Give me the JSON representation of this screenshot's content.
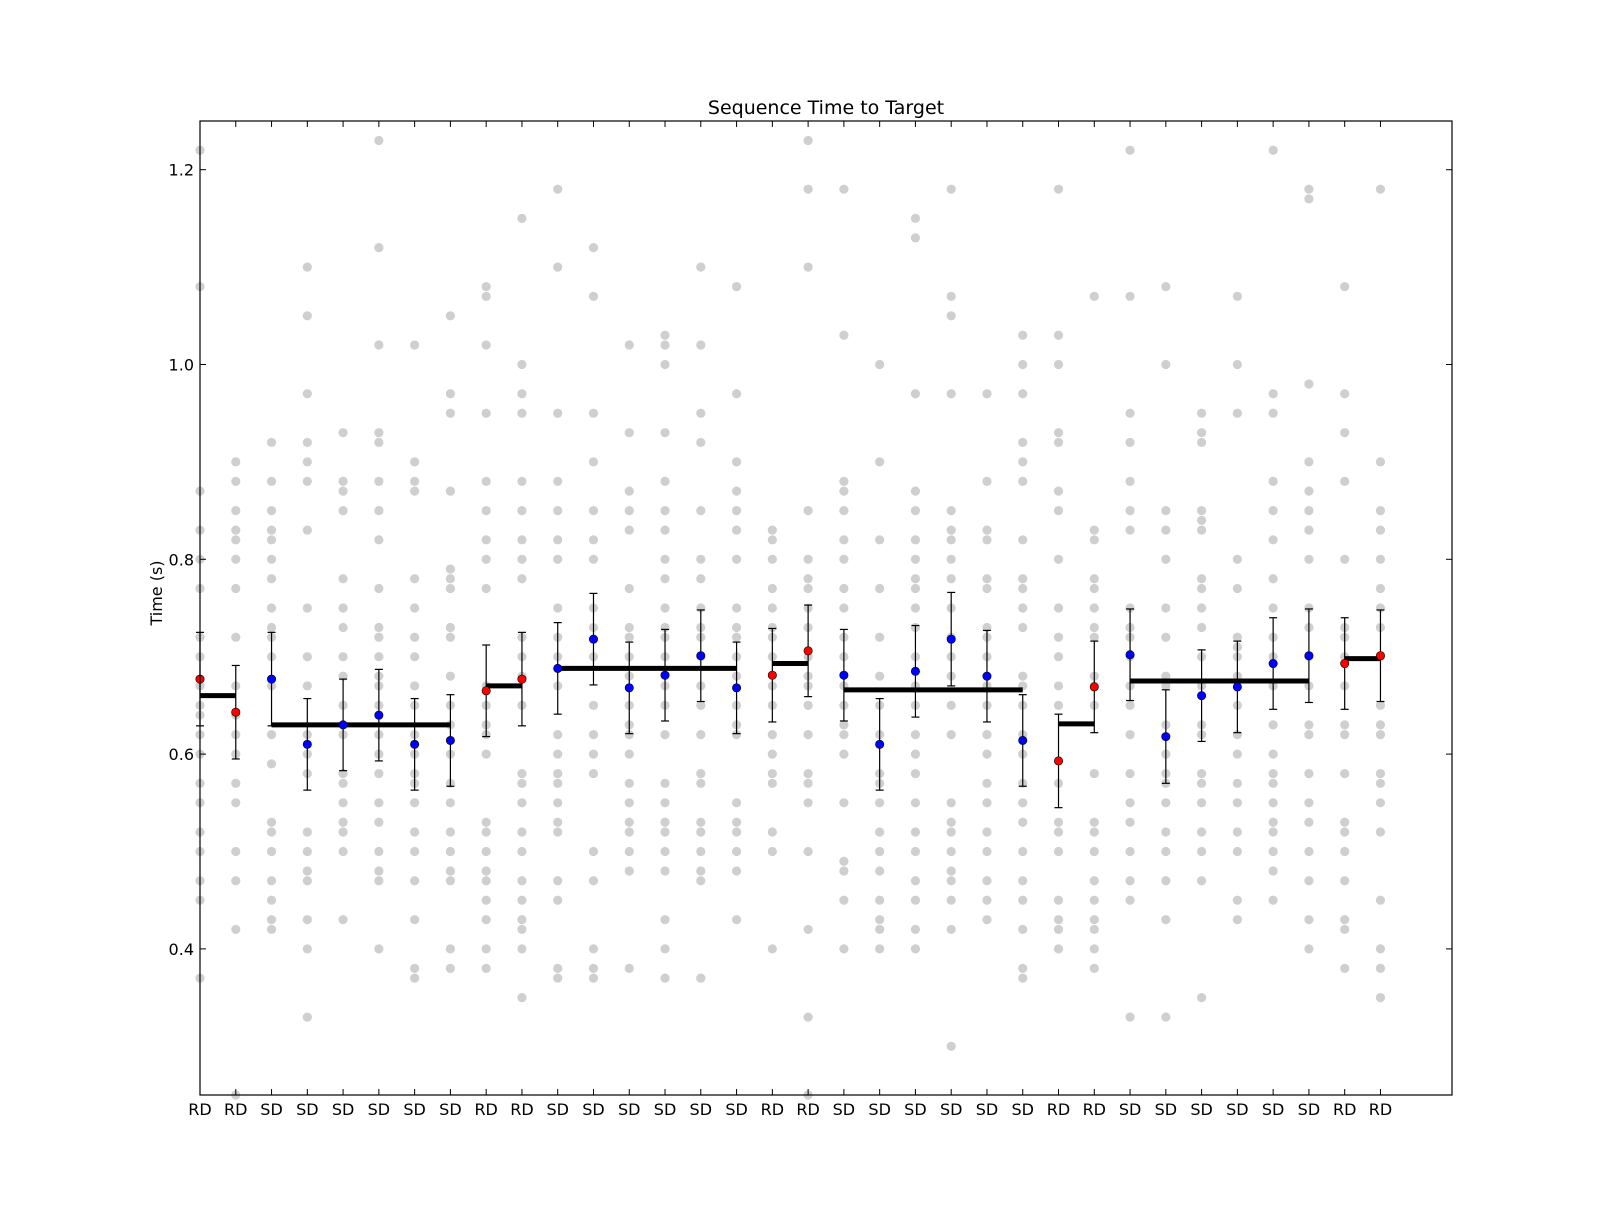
{
  "chart_data": {
    "type": "scatter",
    "title": "Sequence Time to Target",
    "xlabel": "",
    "ylabel": "Time (s)",
    "ylim": [
      0.25,
      1.25
    ],
    "xlim": [
      0,
      35
    ],
    "grid": false,
    "yticks": [
      0.4,
      0.6,
      0.8,
      1.0,
      1.2
    ],
    "ytick_labels": [
      "0.4",
      "0.6",
      "0.8",
      "1.0",
      "1.2"
    ],
    "categories": [
      "RD",
      "RD",
      "SD",
      "SD",
      "SD",
      "SD",
      "SD",
      "SD",
      "RD",
      "RD",
      "SD",
      "SD",
      "SD",
      "SD",
      "SD",
      "SD",
      "RD",
      "RD",
      "SD",
      "SD",
      "SD",
      "SD",
      "SD",
      "SD",
      "RD",
      "RD",
      "SD",
      "SD",
      "SD",
      "SD",
      "SD",
      "SD",
      "RD",
      "RD"
    ],
    "colors": {
      "rd_mean": "#ff0000",
      "sd_mean": "#0000ff",
      "raw_points": "#808080",
      "block_mean": "#000000"
    },
    "means": [
      0.677,
      0.643,
      0.677,
      0.61,
      0.63,
      0.64,
      0.61,
      0.614,
      0.665,
      0.677,
      0.688,
      0.718,
      0.668,
      0.681,
      0.701,
      0.668,
      0.681,
      0.706,
      0.681,
      0.61,
      0.685,
      0.718,
      0.68,
      0.614,
      0.593,
      0.669,
      0.702,
      0.618,
      0.66,
      0.669,
      0.693,
      0.701,
      0.693,
      0.701
    ],
    "errors": [
      0.048,
      0.048,
      0.048,
      0.047,
      0.047,
      0.047,
      0.047,
      0.047,
      0.047,
      0.048,
      0.047,
      0.047,
      0.047,
      0.047,
      0.047,
      0.047,
      0.048,
      0.047,
      0.047,
      0.047,
      0.047,
      0.048,
      0.047,
      0.047,
      0.048,
      0.047,
      0.047,
      0.048,
      0.047,
      0.047,
      0.047,
      0.048,
      0.047,
      0.047
    ],
    "block_means": [
      {
        "start": 0,
        "end": 1,
        "value": 0.66
      },
      {
        "start": 2,
        "end": 7,
        "value": 0.63
      },
      {
        "start": 8,
        "end": 9,
        "value": 0.67
      },
      {
        "start": 10,
        "end": 15,
        "value": 0.688
      },
      {
        "start": 16,
        "end": 17,
        "value": 0.693
      },
      {
        "start": 18,
        "end": 23,
        "value": 0.666
      },
      {
        "start": 24,
        "end": 25,
        "value": 0.631
      },
      {
        "start": 26,
        "end": 31,
        "value": 0.675
      },
      {
        "start": 32,
        "end": 33,
        "value": 0.698
      }
    ],
    "raw_points": [
      [
        0.37,
        0.45,
        0.47,
        0.5,
        0.52,
        0.55,
        0.57,
        0.6,
        0.62,
        0.64,
        0.65,
        0.67,
        0.7,
        0.72,
        0.77,
        0.8,
        0.83,
        0.87,
        1.08,
        1.22
      ],
      [
        0.25,
        0.42,
        0.47,
        0.5,
        0.55,
        0.57,
        0.6,
        0.62,
        0.64,
        0.67,
        0.72,
        0.77,
        0.8,
        0.82,
        0.83,
        0.85,
        0.88,
        0.9
      ],
      [
        0.42,
        0.43,
        0.45,
        0.47,
        0.5,
        0.52,
        0.53,
        0.59,
        0.62,
        0.67,
        0.7,
        0.72,
        0.73,
        0.75,
        0.78,
        0.8,
        0.82,
        0.83,
        0.85,
        0.88,
        0.92
      ],
      [
        0.33,
        0.4,
        0.43,
        0.47,
        0.48,
        0.5,
        0.52,
        0.58,
        0.6,
        0.62,
        0.67,
        0.7,
        0.75,
        0.83,
        0.88,
        0.9,
        0.92,
        0.97,
        1.05,
        1.1
      ],
      [
        0.43,
        0.5,
        0.52,
        0.53,
        0.55,
        0.57,
        0.58,
        0.62,
        0.63,
        0.65,
        0.68,
        0.7,
        0.73,
        0.75,
        0.78,
        0.85,
        0.87,
        0.88,
        0.93
      ],
      [
        0.4,
        0.47,
        0.48,
        0.5,
        0.53,
        0.55,
        0.58,
        0.6,
        0.62,
        0.65,
        0.67,
        0.68,
        0.7,
        0.72,
        0.73,
        0.77,
        0.82,
        0.85,
        0.88,
        0.92,
        0.93,
        1.02,
        1.12,
        1.23
      ],
      [
        0.37,
        0.38,
        0.43,
        0.47,
        0.5,
        0.52,
        0.55,
        0.57,
        0.58,
        0.6,
        0.62,
        0.65,
        0.67,
        0.7,
        0.72,
        0.75,
        0.78,
        0.87,
        0.88,
        0.9,
        1.02
      ],
      [
        0.38,
        0.4,
        0.47,
        0.48,
        0.5,
        0.52,
        0.55,
        0.57,
        0.6,
        0.63,
        0.65,
        0.68,
        0.72,
        0.73,
        0.77,
        0.78,
        0.79,
        0.87,
        0.95,
        0.97,
        1.05
      ],
      [
        0.38,
        0.4,
        0.43,
        0.45,
        0.47,
        0.48,
        0.5,
        0.52,
        0.53,
        0.6,
        0.62,
        0.63,
        0.65,
        0.67,
        0.77,
        0.8,
        0.82,
        0.85,
        0.88,
        0.95,
        1.02,
        1.07,
        1.08
      ],
      [
        0.35,
        0.4,
        0.42,
        0.43,
        0.45,
        0.47,
        0.5,
        0.52,
        0.55,
        0.57,
        0.58,
        0.65,
        0.68,
        0.7,
        0.72,
        0.78,
        0.8,
        0.82,
        0.85,
        0.88,
        0.95,
        0.97,
        1.0,
        1.15
      ],
      [
        0.37,
        0.38,
        0.45,
        0.47,
        0.52,
        0.53,
        0.55,
        0.57,
        0.58,
        0.6,
        0.62,
        0.67,
        0.7,
        0.72,
        0.75,
        0.8,
        0.82,
        0.85,
        0.88,
        0.95,
        1.1,
        1.18
      ],
      [
        0.37,
        0.38,
        0.4,
        0.47,
        0.5,
        0.58,
        0.6,
        0.62,
        0.65,
        0.7,
        0.73,
        0.75,
        0.8,
        0.82,
        0.85,
        0.9,
        0.95,
        1.07,
        1.12
      ],
      [
        0.38,
        0.48,
        0.5,
        0.52,
        0.53,
        0.55,
        0.57,
        0.6,
        0.62,
        0.63,
        0.65,
        0.68,
        0.7,
        0.72,
        0.73,
        0.77,
        0.83,
        0.85,
        0.87,
        0.93,
        1.02
      ],
      [
        0.37,
        0.4,
        0.43,
        0.48,
        0.5,
        0.52,
        0.53,
        0.55,
        0.57,
        0.62,
        0.65,
        0.67,
        0.7,
        0.72,
        0.73,
        0.75,
        0.78,
        0.8,
        0.83,
        0.85,
        0.88,
        0.93,
        1.0,
        1.02,
        1.03
      ],
      [
        0.37,
        0.47,
        0.48,
        0.5,
        0.52,
        0.53,
        0.57,
        0.58,
        0.62,
        0.65,
        0.67,
        0.7,
        0.72,
        0.73,
        0.75,
        0.78,
        0.8,
        0.85,
        0.92,
        0.95,
        1.02,
        1.1
      ],
      [
        0.43,
        0.48,
        0.5,
        0.52,
        0.53,
        0.55,
        0.62,
        0.63,
        0.65,
        0.68,
        0.7,
        0.72,
        0.73,
        0.75,
        0.8,
        0.83,
        0.85,
        0.87,
        0.9,
        0.97,
        1.08
      ],
      [
        0.4,
        0.5,
        0.52,
        0.57,
        0.58,
        0.6,
        0.62,
        0.65,
        0.67,
        0.7,
        0.72,
        0.73,
        0.75,
        0.77,
        0.8,
        0.82,
        0.83
      ],
      [
        0.25,
        0.33,
        0.42,
        0.5,
        0.55,
        0.57,
        0.58,
        0.62,
        0.65,
        0.67,
        0.68,
        0.7,
        0.73,
        0.75,
        0.77,
        0.78,
        0.8,
        0.85,
        1.1,
        1.18,
        1.23
      ],
      [
        0.4,
        0.45,
        0.48,
        0.49,
        0.55,
        0.6,
        0.62,
        0.63,
        0.65,
        0.67,
        0.7,
        0.72,
        0.75,
        0.77,
        0.8,
        0.82,
        0.85,
        0.87,
        0.88,
        1.03,
        1.18
      ],
      [
        0.4,
        0.42,
        0.43,
        0.45,
        0.48,
        0.5,
        0.52,
        0.55,
        0.57,
        0.58,
        0.62,
        0.65,
        0.68,
        0.72,
        0.77,
        0.82,
        0.9,
        1.0
      ],
      [
        0.4,
        0.42,
        0.45,
        0.47,
        0.5,
        0.52,
        0.55,
        0.58,
        0.6,
        0.62,
        0.65,
        0.67,
        0.7,
        0.73,
        0.75,
        0.77,
        0.78,
        0.8,
        0.82,
        0.85,
        0.87,
        0.97,
        1.13,
        1.15
      ],
      [
        0.3,
        0.42,
        0.45,
        0.47,
        0.48,
        0.5,
        0.52,
        0.53,
        0.55,
        0.62,
        0.65,
        0.68,
        0.7,
        0.72,
        0.75,
        0.78,
        0.8,
        0.82,
        0.83,
        0.85,
        0.97,
        1.05,
        1.07,
        1.18
      ],
      [
        0.43,
        0.45,
        0.47,
        0.5,
        0.52,
        0.55,
        0.57,
        0.6,
        0.62,
        0.65,
        0.67,
        0.7,
        0.72,
        0.73,
        0.77,
        0.78,
        0.82,
        0.83,
        0.88,
        0.97
      ],
      [
        0.37,
        0.38,
        0.42,
        0.45,
        0.47,
        0.5,
        0.53,
        0.55,
        0.57,
        0.6,
        0.62,
        0.65,
        0.67,
        0.68,
        0.73,
        0.75,
        0.77,
        0.78,
        0.82,
        0.88,
        0.9,
        0.92,
        0.97,
        1.0,
        1.03
      ],
      [
        0.4,
        0.42,
        0.43,
        0.45,
        0.5,
        0.52,
        0.53,
        0.57,
        0.65,
        0.67,
        0.7,
        0.72,
        0.75,
        0.8,
        0.85,
        0.87,
        0.92,
        0.93,
        1.0,
        1.03,
        1.18
      ],
      [
        0.38,
        0.4,
        0.42,
        0.43,
        0.45,
        0.47,
        0.5,
        0.52,
        0.53,
        0.58,
        0.65,
        0.67,
        0.68,
        0.72,
        0.73,
        0.75,
        0.77,
        0.78,
        0.82,
        0.83,
        1.07
      ],
      [
        0.33,
        0.45,
        0.47,
        0.5,
        0.53,
        0.55,
        0.58,
        0.62,
        0.65,
        0.67,
        0.7,
        0.72,
        0.73,
        0.75,
        0.83,
        0.85,
        0.88,
        0.92,
        0.95,
        1.07,
        1.22
      ],
      [
        0.33,
        0.43,
        0.47,
        0.5,
        0.52,
        0.55,
        0.57,
        0.58,
        0.6,
        0.63,
        0.67,
        0.68,
        0.72,
        0.75,
        0.8,
        0.83,
        0.85,
        1.0,
        1.08
      ],
      [
        0.35,
        0.47,
        0.5,
        0.52,
        0.55,
        0.57,
        0.58,
        0.62,
        0.63,
        0.67,
        0.7,
        0.73,
        0.75,
        0.77,
        0.78,
        0.83,
        0.84,
        0.85,
        0.92,
        0.93,
        0.95
      ],
      [
        0.43,
        0.45,
        0.5,
        0.52,
        0.55,
        0.57,
        0.6,
        0.62,
        0.65,
        0.68,
        0.7,
        0.71,
        0.72,
        0.77,
        0.8,
        0.95,
        1.0,
        1.07
      ],
      [
        0.45,
        0.48,
        0.5,
        0.52,
        0.53,
        0.55,
        0.57,
        0.58,
        0.6,
        0.63,
        0.67,
        0.7,
        0.72,
        0.75,
        0.78,
        0.82,
        0.85,
        0.88,
        0.95,
        0.97,
        1.22
      ],
      [
        0.4,
        0.43,
        0.47,
        0.5,
        0.53,
        0.55,
        0.58,
        0.62,
        0.63,
        0.67,
        0.7,
        0.73,
        0.75,
        0.8,
        0.83,
        0.85,
        0.87,
        0.9,
        0.98,
        1.17,
        1.18
      ],
      [
        0.38,
        0.42,
        0.43,
        0.47,
        0.5,
        0.52,
        0.53,
        0.58,
        0.62,
        0.63,
        0.67,
        0.7,
        0.72,
        0.73,
        0.8,
        0.88,
        0.93,
        0.97,
        1.08
      ],
      [
        0.35,
        0.38,
        0.4,
        0.45,
        0.52,
        0.55,
        0.57,
        0.58,
        0.62,
        0.63,
        0.65,
        0.7,
        0.73,
        0.75,
        0.77,
        0.8,
        0.83,
        0.85,
        0.9,
        1.18
      ]
    ]
  }
}
